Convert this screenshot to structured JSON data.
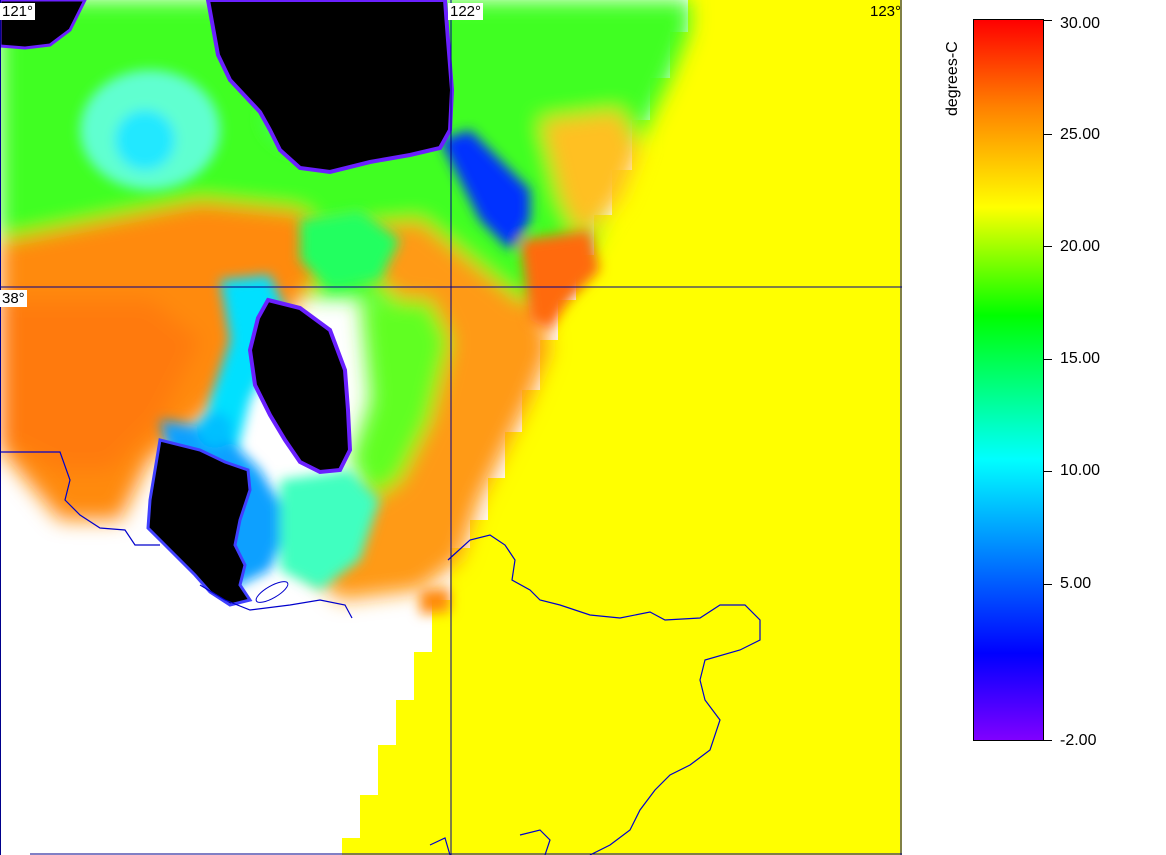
{
  "map": {
    "longitude_labels": [
      "121°",
      "122°",
      "123°"
    ],
    "latitude_labels": [
      "38°"
    ],
    "colors": {
      "land": "#000000",
      "no_data": "#ffffff",
      "open_sea": "#ffff00",
      "coastline": "#0000cc",
      "grid": "#00008b"
    }
  },
  "colorbar": {
    "title": "degrees-C",
    "min": -2.0,
    "max": 30.0,
    "ticks": [
      "30.00",
      "25.00",
      "20.00",
      "15.00",
      "10.00",
      "5.00",
      "-2.00"
    ],
    "stops": [
      {
        "value": -2.0,
        "color": "#8000ff"
      },
      {
        "value": 2.0,
        "color": "#0000ff"
      },
      {
        "value": 10.5,
        "color": "#00ffff"
      },
      {
        "value": 17.0,
        "color": "#00ff00"
      },
      {
        "value": 21.5,
        "color": "#ffff00"
      },
      {
        "value": 26.0,
        "color": "#ff8000"
      },
      {
        "value": 30.0,
        "color": "#ff0000"
      }
    ]
  }
}
